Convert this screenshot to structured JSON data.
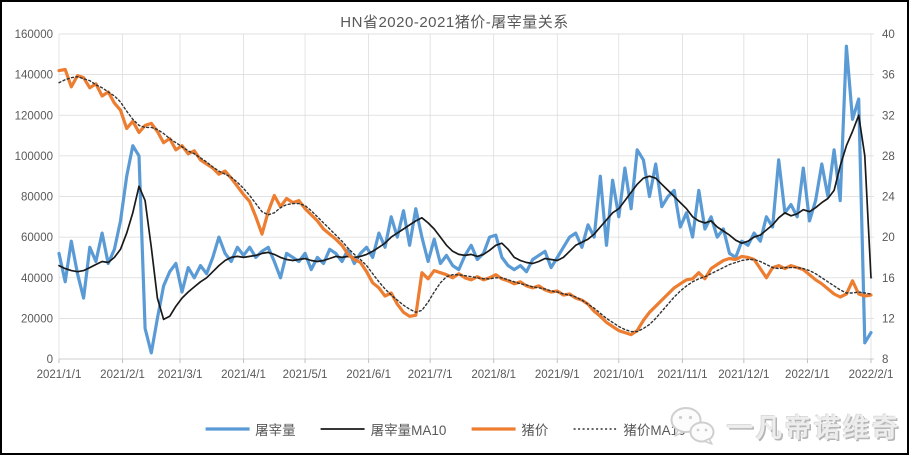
{
  "chart_data": {
    "type": "line",
    "title": "HN省2020-2021猪价-屠宰量关系",
    "x_axis": {
      "unit": "date",
      "tick_labels": [
        "2021/1/1",
        "2021/2/1",
        "2021/3/1",
        "2021/4/1",
        "2021/5/1",
        "2021/6/1",
        "2021/7/1",
        "2021/8/1",
        "2021/9/1",
        "2021/10/1",
        "2021/11/1",
        "2021/12/1",
        "2022/1/1",
        "2022/2/1"
      ],
      "tick_days": [
        0,
        31,
        59,
        90,
        120,
        151,
        181,
        212,
        243,
        273,
        304,
        334,
        365,
        396
      ],
      "total_days": 396
    },
    "y_axis_left": {
      "min": 0,
      "max": 160000,
      "step": 20000,
      "tick_labels": [
        "0",
        "20000",
        "40000",
        "60000",
        "80000",
        "100000",
        "120000",
        "140000",
        "160000"
      ]
    },
    "y_axis_right": {
      "min": 8,
      "max": 40,
      "step": 4,
      "tick_labels": [
        "8",
        "12",
        "16",
        "20",
        "24",
        "28",
        "32",
        "36",
        "40"
      ]
    },
    "grid": true,
    "legend_position": "bottom",
    "colors": {
      "gridline": "#D9D9D9",
      "axis_line": "#BFBFBF",
      "text": "#595959"
    },
    "sample_days": [
      0,
      3,
      6,
      9,
      12,
      15,
      18,
      21,
      24,
      27,
      30,
      33,
      36,
      39,
      42,
      45,
      48,
      51,
      54,
      57,
      60,
      63,
      66,
      69,
      72,
      75,
      78,
      81,
      84,
      87,
      90,
      93,
      96,
      99,
      102,
      105,
      108,
      111,
      114,
      117,
      120,
      123,
      126,
      129,
      132,
      135,
      138,
      141,
      144,
      147,
      150,
      153,
      156,
      159,
      162,
      165,
      168,
      171,
      174,
      177,
      180,
      183,
      186,
      189,
      192,
      195,
      198,
      201,
      204,
      207,
      210,
      213,
      216,
      219,
      222,
      225,
      228,
      231,
      234,
      237,
      240,
      243,
      246,
      249,
      252,
      255,
      258,
      261,
      264,
      267,
      270,
      273,
      276,
      279,
      282,
      285,
      288,
      291,
      294,
      297,
      300,
      303,
      306,
      309,
      312,
      315,
      318,
      321,
      324,
      327,
      330,
      333,
      336,
      339,
      342,
      345,
      348,
      351,
      354,
      357,
      360,
      363,
      366,
      369,
      372,
      375,
      378,
      381,
      384,
      387,
      390,
      393,
      396
    ],
    "series": [
      {
        "name": "屠宰量",
        "axis": "left",
        "color": "#5B9BD5",
        "stroke_width": 3.2,
        "dash": "",
        "values": [
          52000,
          38000,
          58000,
          42000,
          30000,
          55000,
          48000,
          62000,
          47000,
          54000,
          68000,
          90000,
          105000,
          100000,
          15000,
          3000,
          20000,
          36000,
          43000,
          47000,
          33000,
          45000,
          40000,
          46000,
          42000,
          50000,
          60000,
          52000,
          48000,
          55000,
          51000,
          55000,
          50000,
          53000,
          55000,
          48000,
          40000,
          52000,
          50000,
          48000,
          52000,
          44000,
          50000,
          47000,
          54000,
          52000,
          48000,
          54000,
          47000,
          52000,
          55000,
          50000,
          62000,
          55000,
          70000,
          60000,
          73000,
          56000,
          74000,
          60000,
          48000,
          59000,
          47000,
          51000,
          46000,
          44000,
          51000,
          56000,
          49000,
          52000,
          60000,
          61000,
          50000,
          46000,
          44000,
          46000,
          43000,
          49000,
          51000,
          53000,
          45000,
          50000,
          55000,
          60000,
          62000,
          55000,
          66000,
          60000,
          90000,
          56000,
          88000,
          70000,
          94000,
          74000,
          103000,
          98000,
          80000,
          96000,
          75000,
          80000,
          83000,
          65000,
          72000,
          60000,
          83000,
          64000,
          70000,
          60000,
          64000,
          52000,
          50000,
          58000,
          56000,
          62000,
          58000,
          70000,
          65000,
          98000,
          72000,
          76000,
          70000,
          94000,
          68000,
          78000,
          96000,
          80000,
          103000,
          78000,
          154000,
          118000,
          128000,
          8000,
          13000
        ]
      },
      {
        "name": "屠宰量MA10",
        "axis": "left",
        "color": "#1a1a1a",
        "stroke_width": 1.7,
        "dash": "",
        "values": [
          46000,
          44500,
          43500,
          43000,
          43500,
          45000,
          46500,
          48000,
          47500,
          50000,
          54000,
          62000,
          72000,
          85000,
          78000,
          55000,
          30000,
          19500,
          21000,
          26000,
          30000,
          33000,
          35500,
          38000,
          40000,
          43000,
          46000,
          48500,
          50000,
          50500,
          50000,
          50500,
          51000,
          52000,
          52500,
          51500,
          50000,
          49000,
          48500,
          49000,
          49500,
          48500,
          48000,
          48500,
          49500,
          50500,
          50000,
          50500,
          50000,
          50500,
          51500,
          53000,
          55000,
          57000,
          60000,
          62000,
          64000,
          66000,
          68000,
          69500,
          67000,
          64000,
          60000,
          56000,
          53000,
          51500,
          51000,
          51500,
          50500,
          51500,
          53500,
          56000,
          57000,
          54000,
          50000,
          48500,
          47500,
          47000,
          48000,
          49500,
          49000,
          48500,
          50000,
          53000,
          56000,
          57500,
          59000,
          61500,
          65000,
          68500,
          72000,
          74000,
          78000,
          82000,
          86000,
          89000,
          90000,
          89000,
          86000,
          83000,
          80000,
          77000,
          74000,
          70000,
          68000,
          67000,
          68000,
          65000,
          63000,
          61000,
          58500,
          57000,
          58000,
          60000,
          61000,
          63500,
          66000,
          69500,
          72000,
          70500,
          71500,
          73500,
          72500,
          74500,
          77000,
          79000,
          83000,
          95000,
          105000,
          112000,
          120000,
          100000,
          40000
        ]
      },
      {
        "name": "猪价",
        "axis": "right",
        "color": "#ED7D31",
        "stroke_width": 3.2,
        "dash": "",
        "values": [
          36.4,
          36.5,
          34.8,
          35.9,
          35.7,
          34.7,
          35.1,
          33.9,
          34.3,
          33.2,
          32.5,
          30.7,
          31.4,
          30.3,
          31.0,
          31.2,
          30.4,
          29.3,
          29.7,
          28.6,
          29.0,
          28.2,
          28.5,
          27.6,
          27.2,
          26.8,
          26.2,
          26.5,
          25.8,
          25.0,
          24.2,
          23.5,
          22.0,
          20.3,
          22.5,
          24.1,
          23.0,
          23.8,
          23.4,
          23.6,
          22.8,
          22.2,
          21.6,
          20.8,
          20.3,
          19.8,
          19.2,
          18.3,
          17.8,
          17.5,
          16.6,
          15.5,
          15.0,
          14.2,
          14.5,
          13.4,
          12.6,
          12.2,
          12.3,
          16.5,
          15.9,
          16.7,
          16.5,
          16.3,
          16.0,
          16.4,
          16.0,
          15.8,
          16.1,
          15.8,
          16.0,
          16.3,
          15.9,
          15.7,
          15.4,
          15.6,
          15.2,
          15.0,
          15.2,
          14.8,
          14.6,
          14.7,
          14.3,
          14.4,
          14.0,
          13.8,
          13.4,
          12.7,
          12.2,
          11.6,
          11.2,
          10.8,
          10.6,
          10.4,
          10.8,
          11.8,
          12.6,
          13.2,
          13.8,
          14.4,
          15.0,
          15.4,
          15.8,
          15.9,
          16.5,
          15.9,
          16.9,
          17.3,
          17.7,
          17.9,
          17.8,
          18.1,
          18.0,
          17.8,
          16.9,
          16.0,
          17.0,
          17.2,
          16.9,
          17.2,
          17.0,
          16.8,
          16.3,
          15.8,
          15.4,
          14.9,
          14.4,
          14.1,
          14.4,
          15.7,
          14.4,
          14.2,
          14.3
        ]
      },
      {
        "name": "猪价MA10",
        "axis": "right",
        "color": "#333333",
        "stroke_width": 1.4,
        "dash": "2 2.5",
        "values": [
          35.2,
          35.5,
          35.7,
          35.8,
          35.6,
          35.4,
          35.0,
          34.7,
          34.3,
          33.9,
          33.3,
          32.4,
          31.6,
          31.0,
          30.8,
          30.8,
          30.6,
          30.2,
          29.7,
          29.3,
          28.9,
          28.5,
          28.2,
          27.8,
          27.4,
          26.9,
          26.5,
          26.2,
          25.9,
          25.4,
          24.8,
          24.1,
          23.3,
          22.5,
          22.2,
          22.4,
          22.9,
          23.2,
          23.3,
          23.3,
          23.1,
          22.6,
          22.0,
          21.4,
          20.8,
          20.2,
          19.6,
          18.9,
          18.3,
          17.8,
          17.2,
          16.4,
          15.6,
          14.9,
          14.3,
          13.8,
          13.3,
          12.9,
          12.6,
          12.8,
          13.6,
          14.6,
          15.5,
          16.1,
          16.3,
          16.3,
          16.2,
          16.1,
          16.0,
          15.9,
          15.9,
          16.0,
          16.0,
          15.8,
          15.6,
          15.4,
          15.3,
          15.1,
          15.0,
          14.9,
          14.7,
          14.6,
          14.4,
          14.3,
          14.1,
          13.8,
          13.4,
          13.0,
          12.5,
          12.0,
          11.6,
          11.2,
          10.9,
          10.7,
          10.7,
          11.0,
          11.4,
          12.0,
          12.7,
          13.4,
          14.1,
          14.7,
          15.2,
          15.6,
          15.9,
          16.1,
          16.4,
          16.7,
          17.0,
          17.3,
          17.5,
          17.7,
          17.8,
          17.8,
          17.6,
          17.3,
          17.0,
          16.9,
          17.0,
          17.0,
          17.0,
          16.9,
          16.7,
          16.4,
          16.0,
          15.6,
          15.2,
          14.8,
          14.5,
          14.5,
          14.6,
          14.5,
          14.4
        ]
      }
    ]
  },
  "footer": {
    "watermark": "一凡帝诺维奇"
  }
}
